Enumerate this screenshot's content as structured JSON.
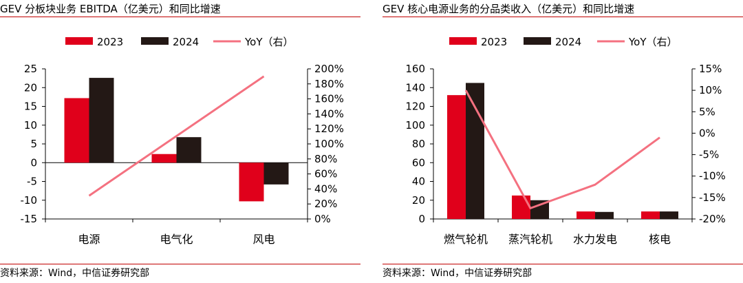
{
  "colors": {
    "red": "#e0001b",
    "black": "#231815",
    "line": "#f47180",
    "rule": "#c00000"
  },
  "chart_data": [
    {
      "type": "bar",
      "title": "GEV 分板块业务 EBITDA（亿美元）和同比增速",
      "source": "资料来源：Wind，中信证券研究部",
      "categories": [
        "电源",
        "电气化",
        "风电"
      ],
      "series": [
        {
          "name": "2023",
          "type": "bar",
          "axis": "left",
          "values": [
            17.2,
            2.3,
            -10.3
          ]
        },
        {
          "name": "2024",
          "type": "bar",
          "axis": "left",
          "values": [
            22.6,
            6.8,
            -5.8
          ]
        },
        {
          "name": "YoY（右）",
          "type": "line",
          "axis": "right",
          "values": [
            31,
            null,
            190
          ]
        }
      ],
      "legend": [
        "2023",
        "2024",
        "YoY（右）"
      ],
      "y_left": {
        "min": -15,
        "max": 25,
        "step": 5,
        "ticks": [
          "25",
          "20",
          "15",
          "10",
          "5",
          "0",
          "-5",
          "-10",
          "-15"
        ]
      },
      "y_right": {
        "min": 0,
        "max": 200,
        "step": 20,
        "ticks": [
          "200%",
          "180%",
          "160%",
          "140%",
          "120%",
          "100%",
          "80%",
          "60%",
          "40%",
          "20%",
          "0%"
        ]
      }
    },
    {
      "type": "bar",
      "title": "GEV 核心电源业务的分品类收入（亿美元）和同比增速",
      "source": "资料来源：Wind，中信证券研究部",
      "categories": [
        "燃气轮机",
        "蒸汽轮机",
        "水力发电",
        "核电"
      ],
      "series": [
        {
          "name": "2023",
          "type": "bar",
          "axis": "left",
          "values": [
            132,
            25,
            8,
            8
          ]
        },
        {
          "name": "2024",
          "type": "bar",
          "axis": "left",
          "values": [
            145,
            20,
            7.5,
            8
          ]
        },
        {
          "name": "YoY（右）",
          "type": "line",
          "axis": "right",
          "values": [
            10,
            -17.5,
            -12,
            -1
          ]
        }
      ],
      "legend": [
        "2023",
        "2024",
        "YoY（右）"
      ],
      "y_left": {
        "min": 0,
        "max": 160,
        "step": 20,
        "ticks": [
          "160",
          "140",
          "120",
          "100",
          "80",
          "60",
          "40",
          "20",
          "0"
        ]
      },
      "y_right": {
        "min": -20,
        "max": 15,
        "step": 5,
        "ticks": [
          "15%",
          "10%",
          "5%",
          "0%",
          "-5%",
          "-10%",
          "-15%",
          "-20%"
        ]
      }
    }
  ]
}
